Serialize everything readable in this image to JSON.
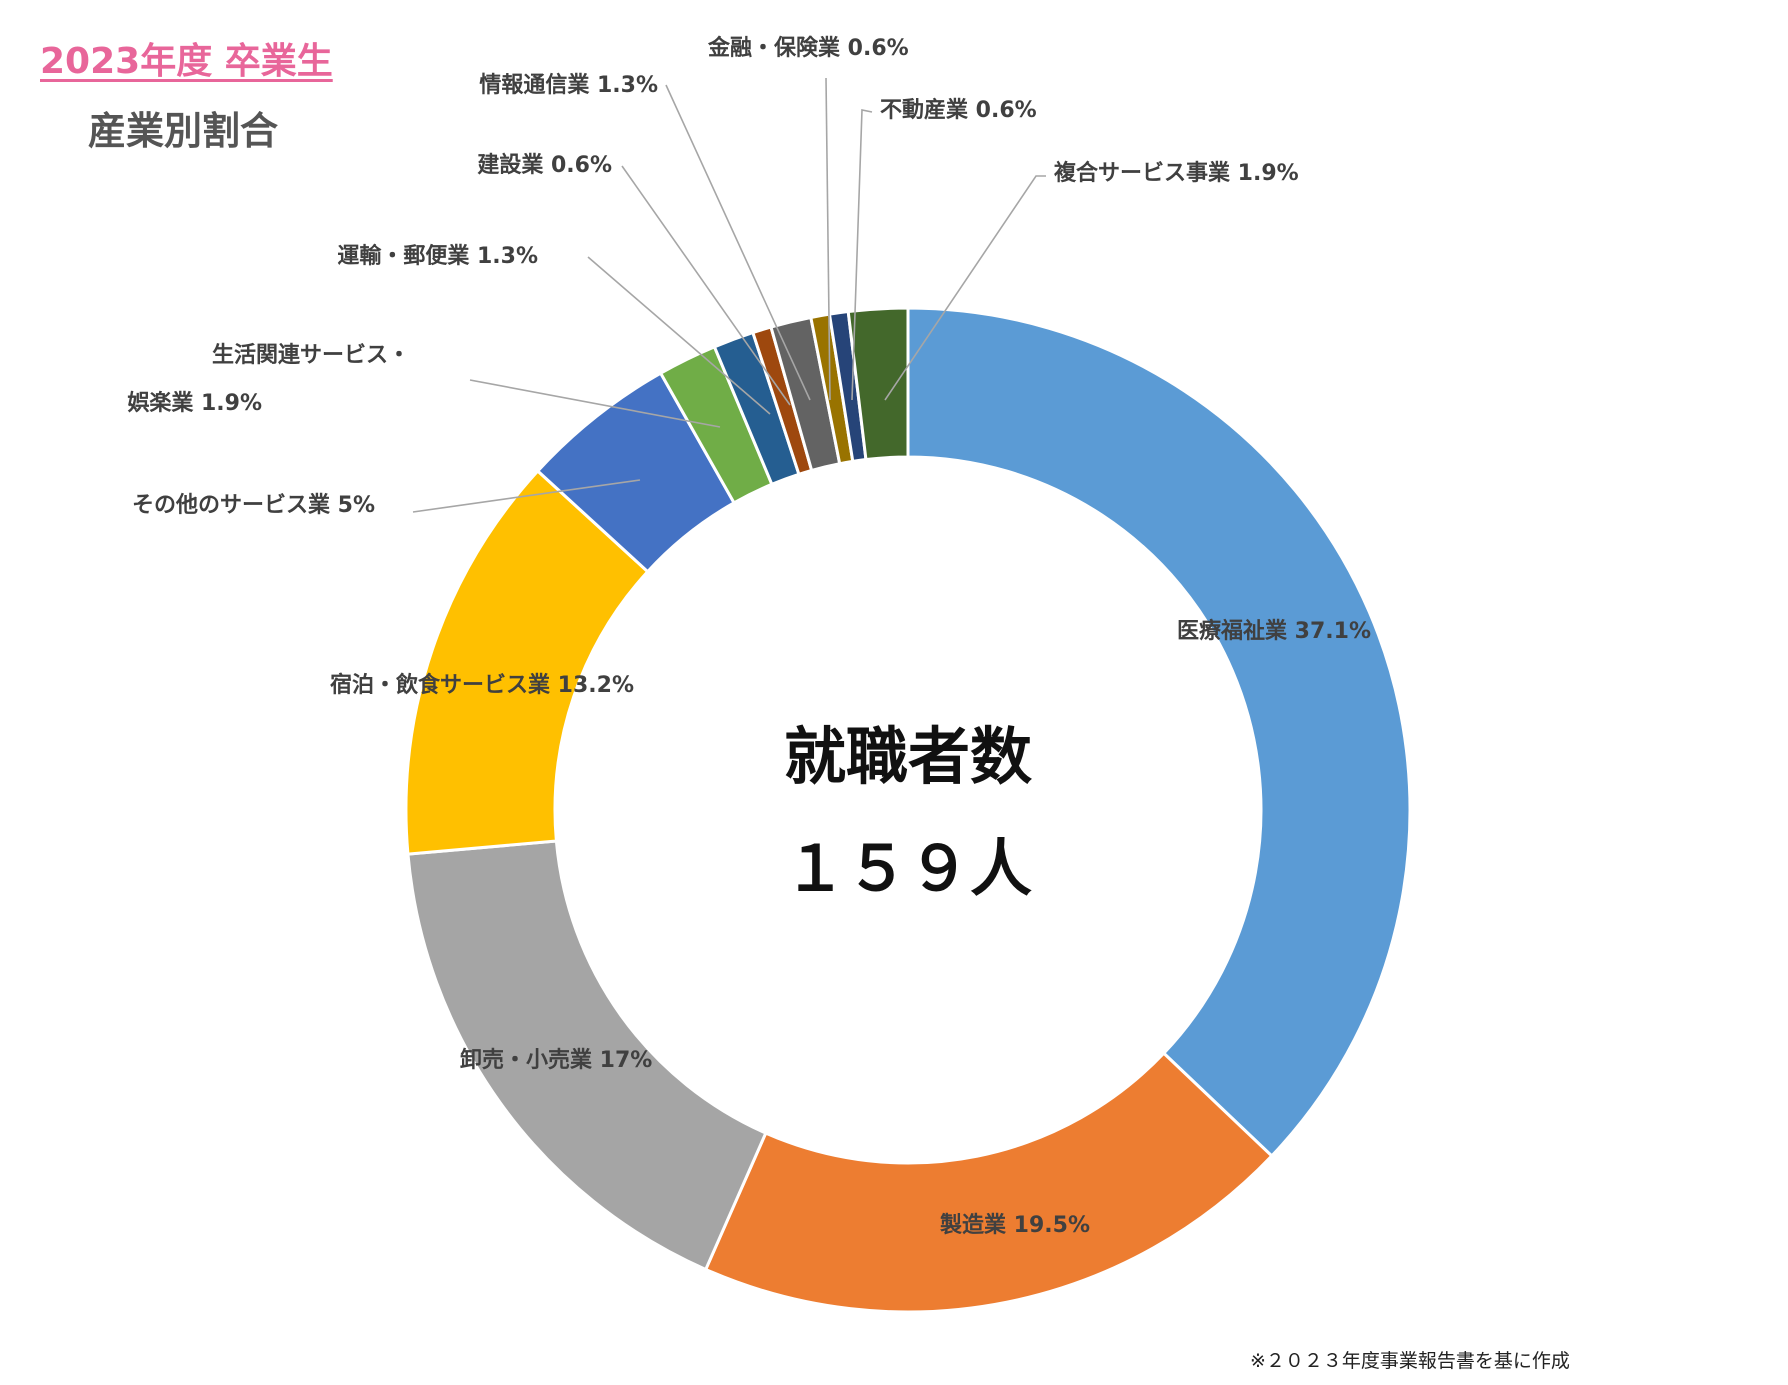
{
  "header": {
    "title": "2023年度 卒業生",
    "subtitle": "産業別割合"
  },
  "center": {
    "label": "就職者数",
    "count": "１５９人"
  },
  "footnote": "※２０２３年度事業報告書を基に作成",
  "chart_data": {
    "type": "pie",
    "variant": "donut",
    "unit": "%",
    "total_label": "就職者数",
    "total_value": 159,
    "slices": [
      {
        "name": "医療福祉業",
        "value": 37.1,
        "label": "医療福祉業 37.1%",
        "color": "#5b9bd5"
      },
      {
        "name": "製造業",
        "value": 19.5,
        "label": "製造業 19.5%",
        "color": "#ed7d31"
      },
      {
        "name": "卸売・小売業",
        "value": 17,
        "label": "卸売・小売業 17%",
        "color": "#a5a5a5"
      },
      {
        "name": "宿泊・飲食サービス業",
        "value": 13.2,
        "label": "宿泊・飲食サービス業 13.2%",
        "color": "#ffc000"
      },
      {
        "name": "その他のサービス業",
        "value": 5,
        "label": "その他のサービス業 5%",
        "color": "#4472c4"
      },
      {
        "name": "生活関連サービス・娯楽業",
        "value": 1.9,
        "label": [
          "生活関連サービス・",
          "娯楽業 1.9%"
        ],
        "color": "#70ad47"
      },
      {
        "name": "運輸・郵便業",
        "value": 1.3,
        "label": "運輸・郵便業 1.3%",
        "color": "#255e91"
      },
      {
        "name": "建設業",
        "value": 0.6,
        "label": "建設業 0.6%",
        "color": "#9e480e"
      },
      {
        "name": "情報通信業",
        "value": 1.3,
        "label": "情報通信業 1.3%",
        "color": "#636363"
      },
      {
        "name": "金融・保険業",
        "value": 0.6,
        "label": "金融・保険業 0.6%",
        "color": "#997300"
      },
      {
        "name": "不動産業",
        "value": 0.6,
        "label": "不動産業 0.6%",
        "color": "#264478"
      },
      {
        "name": "複合サービス事業",
        "value": 1.9,
        "label": "複合サービス事業 1.9%",
        "color": "#43682b"
      }
    ]
  }
}
